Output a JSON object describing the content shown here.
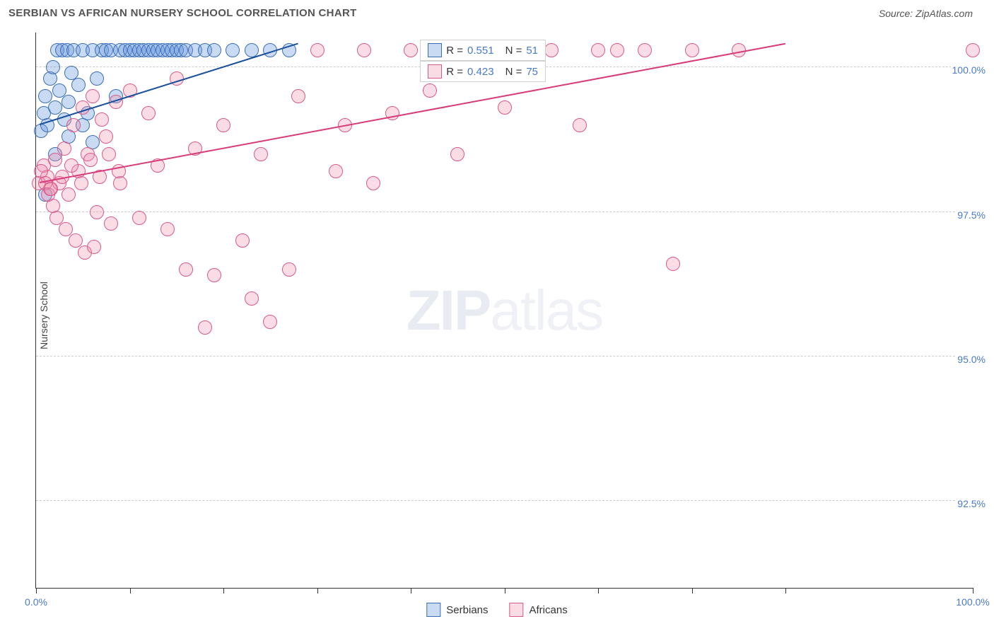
{
  "title": "SERBIAN VS AFRICAN NURSERY SCHOOL CORRELATION CHART",
  "source_label": "Source: ZipAtlas.com",
  "y_axis_title": "Nursery School",
  "watermark": {
    "bold": "ZIP",
    "light": "atlas"
  },
  "chart": {
    "type": "scatter",
    "xlim": [
      0,
      100
    ],
    "ylim": [
      91,
      100.6
    ],
    "xtick_label_left": "0.0%",
    "xtick_label_right": "100.0%",
    "xtick_positions": [
      0,
      10,
      20,
      30,
      40,
      50,
      60,
      70,
      80,
      100
    ],
    "ytick_labels": [
      {
        "value": 100.0,
        "label": "100.0%"
      },
      {
        "value": 97.5,
        "label": "97.5%"
      },
      {
        "value": 95.0,
        "label": "95.0%"
      },
      {
        "value": 92.5,
        "label": "92.5%"
      }
    ],
    "background_color": "#ffffff",
    "grid_color": "#cccccc",
    "series": [
      {
        "name": "Serbians",
        "marker_fill": "rgba(100,150,220,0.35)",
        "marker_stroke": "#3b6fb5",
        "marker_radius": 10,
        "trend_color": "#1a4f9c",
        "trend": {
          "x1": 0.4,
          "y1": 99.0,
          "x2": 28,
          "y2": 100.4
        },
        "legend_r": "0.551",
        "legend_n": "51",
        "points": [
          [
            0.5,
            98.9
          ],
          [
            0.8,
            99.2
          ],
          [
            1.0,
            99.5
          ],
          [
            1.2,
            99.0
          ],
          [
            1.5,
            99.8
          ],
          [
            1.8,
            100.0
          ],
          [
            2.0,
            99.3
          ],
          [
            2.3,
            100.3
          ],
          [
            2.5,
            99.6
          ],
          [
            2.8,
            100.3
          ],
          [
            3.0,
            99.1
          ],
          [
            3.3,
            100.3
          ],
          [
            3.5,
            99.4
          ],
          [
            3.8,
            99.9
          ],
          [
            4.0,
            100.3
          ],
          [
            4.5,
            99.7
          ],
          [
            5.0,
            100.3
          ],
          [
            5.5,
            99.2
          ],
          [
            6.0,
            100.3
          ],
          [
            6.5,
            99.8
          ],
          [
            7.0,
            100.3
          ],
          [
            7.5,
            100.3
          ],
          [
            8.0,
            100.3
          ],
          [
            8.5,
            99.5
          ],
          [
            9.0,
            100.3
          ],
          [
            9.5,
            100.3
          ],
          [
            10.0,
            100.3
          ],
          [
            10.5,
            100.3
          ],
          [
            11.0,
            100.3
          ],
          [
            11.5,
            100.3
          ],
          [
            12.0,
            100.3
          ],
          [
            12.5,
            100.3
          ],
          [
            13.0,
            100.3
          ],
          [
            13.5,
            100.3
          ],
          [
            14.0,
            100.3
          ],
          [
            14.5,
            100.3
          ],
          [
            15.0,
            100.3
          ],
          [
            15.5,
            100.3
          ],
          [
            16.0,
            100.3
          ],
          [
            17.0,
            100.3
          ],
          [
            18.0,
            100.3
          ],
          [
            19.0,
            100.3
          ],
          [
            21.0,
            100.3
          ],
          [
            23.0,
            100.3
          ],
          [
            25.0,
            100.3
          ],
          [
            27.0,
            100.3
          ],
          [
            1.0,
            97.8
          ],
          [
            2.0,
            98.5
          ],
          [
            3.5,
            98.8
          ],
          [
            5.0,
            99.0
          ],
          [
            6.0,
            98.7
          ]
        ]
      },
      {
        "name": "Africans",
        "marker_fill": "rgba(240,140,170,0.30)",
        "marker_stroke": "#d85a8a",
        "marker_radius": 10,
        "trend_color": "#d83a7a",
        "trend": {
          "x1": 0.4,
          "y1": 98.0,
          "x2": 80,
          "y2": 100.4
        },
        "legend_r": "0.423",
        "legend_n": "75",
        "points": [
          [
            0.3,
            98.0
          ],
          [
            0.8,
            98.3
          ],
          [
            1.2,
            98.1
          ],
          [
            1.5,
            97.9
          ],
          [
            2.0,
            98.4
          ],
          [
            2.5,
            98.0
          ],
          [
            3.0,
            98.6
          ],
          [
            3.5,
            97.8
          ],
          [
            4.0,
            99.0
          ],
          [
            4.5,
            98.2
          ],
          [
            5.0,
            99.3
          ],
          [
            5.5,
            98.5
          ],
          [
            6.0,
            99.5
          ],
          [
            6.5,
            97.5
          ],
          [
            7.0,
            99.1
          ],
          [
            7.5,
            98.8
          ],
          [
            8.0,
            97.3
          ],
          [
            8.5,
            99.4
          ],
          [
            9.0,
            98.0
          ],
          [
            10.0,
            99.6
          ],
          [
            11.0,
            97.4
          ],
          [
            12.0,
            99.2
          ],
          [
            13.0,
            98.3
          ],
          [
            14.0,
            97.2
          ],
          [
            15.0,
            99.8
          ],
          [
            16.0,
            96.5
          ],
          [
            17.0,
            98.6
          ],
          [
            18.0,
            95.5
          ],
          [
            19.0,
            96.4
          ],
          [
            20.0,
            99.0
          ],
          [
            22.0,
            97.0
          ],
          [
            23.0,
            96.0
          ],
          [
            24.0,
            98.5
          ],
          [
            25.0,
            95.6
          ],
          [
            27.0,
            96.5
          ],
          [
            28.0,
            99.5
          ],
          [
            30.0,
            100.3
          ],
          [
            32.0,
            98.2
          ],
          [
            33.0,
            99.0
          ],
          [
            35.0,
            100.3
          ],
          [
            36.0,
            98.0
          ],
          [
            38.0,
            99.2
          ],
          [
            40.0,
            100.3
          ],
          [
            42.0,
            99.6
          ],
          [
            44.0,
            100.3
          ],
          [
            45.0,
            98.5
          ],
          [
            48.0,
            100.3
          ],
          [
            50.0,
            99.3
          ],
          [
            52.0,
            100.3
          ],
          [
            55.0,
            100.3
          ],
          [
            58.0,
            99.0
          ],
          [
            60.0,
            100.3
          ],
          [
            62.0,
            100.3
          ],
          [
            65.0,
            100.3
          ],
          [
            68.0,
            96.6
          ],
          [
            70.0,
            100.3
          ],
          [
            75.0,
            100.3
          ],
          [
            100.0,
            100.3
          ],
          [
            1.8,
            97.6
          ],
          [
            2.2,
            97.4
          ],
          [
            3.2,
            97.2
          ],
          [
            4.2,
            97.0
          ],
          [
            5.2,
            96.8
          ],
          [
            6.2,
            96.9
          ],
          [
            0.5,
            98.2
          ],
          [
            1.0,
            98.0
          ],
          [
            1.3,
            97.8
          ],
          [
            1.6,
            97.9
          ],
          [
            2.8,
            98.1
          ],
          [
            3.8,
            98.3
          ],
          [
            4.8,
            98.0
          ],
          [
            5.8,
            98.4
          ],
          [
            6.8,
            98.1
          ],
          [
            7.8,
            98.5
          ],
          [
            8.8,
            98.2
          ]
        ]
      }
    ]
  },
  "legend_text": {
    "r_prefix": "R =",
    "n_prefix": "N ="
  },
  "bottom_legend": {
    "serbians": "Serbians",
    "africans": "Africans"
  }
}
